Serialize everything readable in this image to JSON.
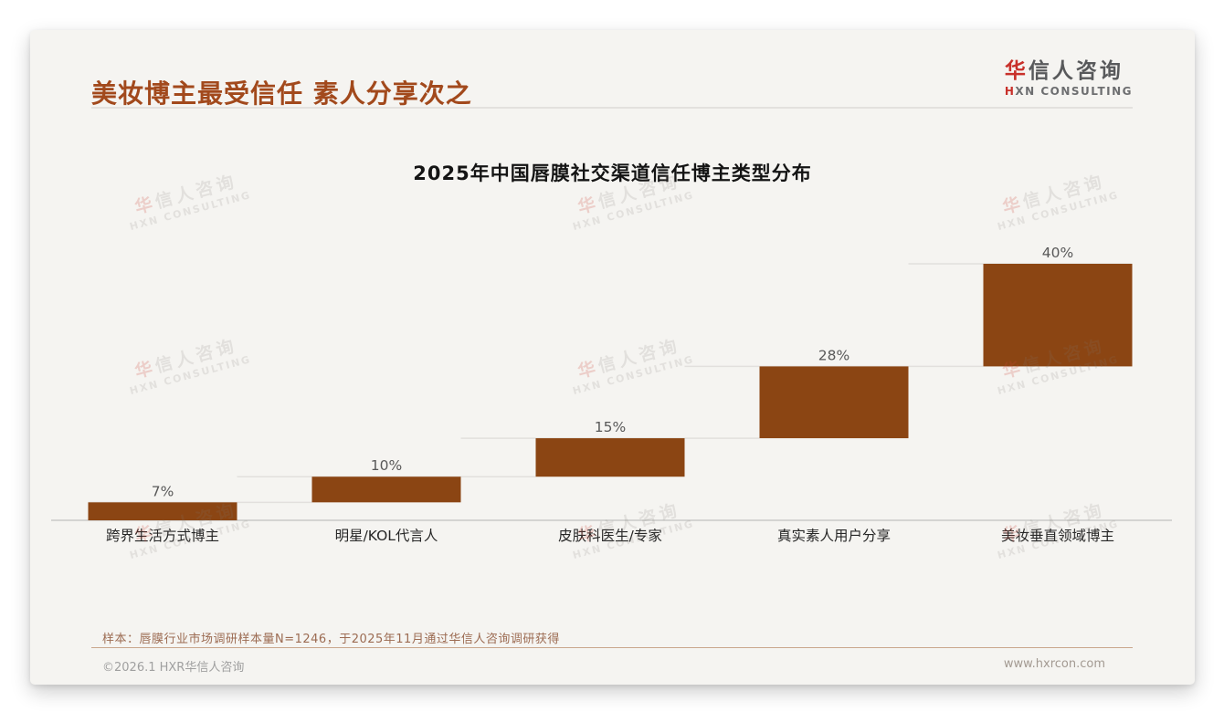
{
  "header": {
    "title": "美妆博主最受信任 素人分享次之",
    "logo": {
      "cn_first": "华",
      "cn_rest": "信人咨询",
      "en_first": "H",
      "en_rest": "XN CONSULTING"
    }
  },
  "chart_data": {
    "type": "bar",
    "subtype": "waterfall",
    "title": "2025年中国唇膜社交渠道信任博主类型分布",
    "categories": [
      "跨界生活方式博主",
      "明星/KOL代言人",
      "皮肤科医生/专家",
      "真实素人用户分享",
      "美妆垂直领域博主"
    ],
    "values": [
      7,
      10,
      15,
      28,
      40
    ],
    "data_labels": [
      "7%",
      "10%",
      "15%",
      "28%",
      "40%"
    ],
    "ylim": [
      0,
      100
    ],
    "grid": false,
    "legend": false,
    "bar_color": "#8b4513",
    "layout_note": "cumulative waterfall: each bar starts at the running total of previous bars, light connector lines link consecutive bar tops, x-axis baseline only"
  },
  "watermark": {
    "cn_first": "华",
    "cn_rest": "信人咨询",
    "en": "HXN CONSULTING"
  },
  "footnote": "样本：唇膜行业市场调研样本量N=1246，于2025年11月通过华信人咨询调研获得",
  "footer": {
    "copyright": "©2026.1 HXR华信人咨询",
    "website": "www.hxrcon.com"
  },
  "colors": {
    "accent_title": "#a2491c",
    "bar": "#8b4513",
    "logo_red": "#c8302a",
    "axis_line": "#c9c9c7",
    "connector_line": "#e2e0dd",
    "value_label": "#595959",
    "category_label": "#262626",
    "footnote_divider": "#c9a78c"
  }
}
